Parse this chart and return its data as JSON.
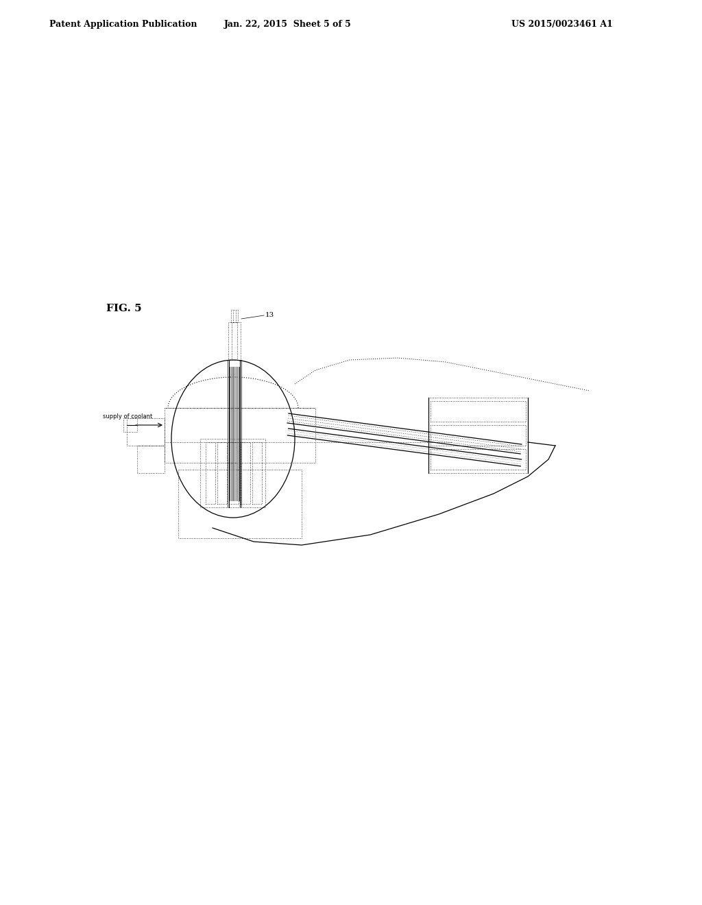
{
  "header_left": "Patent Application Publication",
  "header_mid": "Jan. 22, 2015  Sheet 5 of 5",
  "header_right": "US 2015/0023461 A1",
  "fig_label": "FIG. 5",
  "label_13": "13",
  "label_supply": "supply of coolant",
  "bg_color": "#ffffff",
  "line_color": "#000000"
}
